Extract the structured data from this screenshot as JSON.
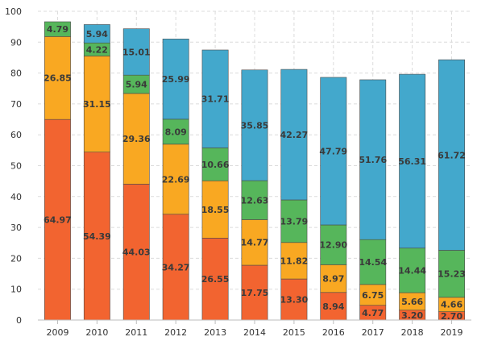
{
  "chart_data": {
    "type": "bar",
    "stacked": true,
    "categories": [
      "2009",
      "2010",
      "2011",
      "2012",
      "2013",
      "2014",
      "2015",
      "2016",
      "2017",
      "2018",
      "2019"
    ],
    "series": [
      {
        "color": "#f26430",
        "values": [
          64.97,
          54.39,
          44.03,
          34.27,
          26.55,
          17.75,
          13.3,
          8.94,
          4.77,
          3.2,
          2.7
        ],
        "labels": [
          "64.97",
          "54.39",
          "44.03",
          "34.27",
          "26.55",
          "17.75",
          "13.30",
          "8.94",
          "4.77",
          "3.20",
          "2.70"
        ]
      },
      {
        "color": "#f9a822",
        "values": [
          26.85,
          31.15,
          29.36,
          22.69,
          18.55,
          14.77,
          11.82,
          8.97,
          6.75,
          5.66,
          4.66
        ],
        "labels": [
          "26.85",
          "31.15",
          "29.36",
          "22.69",
          "18.55",
          "14.77",
          "11.82",
          "8.97",
          "6.75",
          "5.66",
          "4.66"
        ]
      },
      {
        "color": "#56b65b",
        "values": [
          4.79,
          4.22,
          5.94,
          8.09,
          10.66,
          12.63,
          13.79,
          12.9,
          14.54,
          14.44,
          15.23
        ],
        "labels": [
          "4.79",
          "4.22",
          "5.94",
          "8.09",
          "10.66",
          "12.63",
          "13.79",
          "12.90",
          "14.54",
          "14.44",
          "15.23"
        ]
      },
      {
        "color": "#43a8cc",
        "values": [
          0,
          5.94,
          15.01,
          25.99,
          31.71,
          35.85,
          42.27,
          47.79,
          51.76,
          56.31,
          61.72
        ],
        "labels": [
          "",
          "5.94",
          "15.01",
          "25.99",
          "31.71",
          "35.85",
          "42.27",
          "47.79",
          "51.76",
          "56.31",
          "61.72"
        ]
      }
    ],
    "yticks": [
      "0",
      "10",
      "20",
      "30",
      "40",
      "50",
      "60",
      "70",
      "80",
      "90",
      "100"
    ],
    "ylim": [
      0,
      100
    ],
    "grid": true,
    "title": "",
    "xlabel": "",
    "ylabel": ""
  }
}
